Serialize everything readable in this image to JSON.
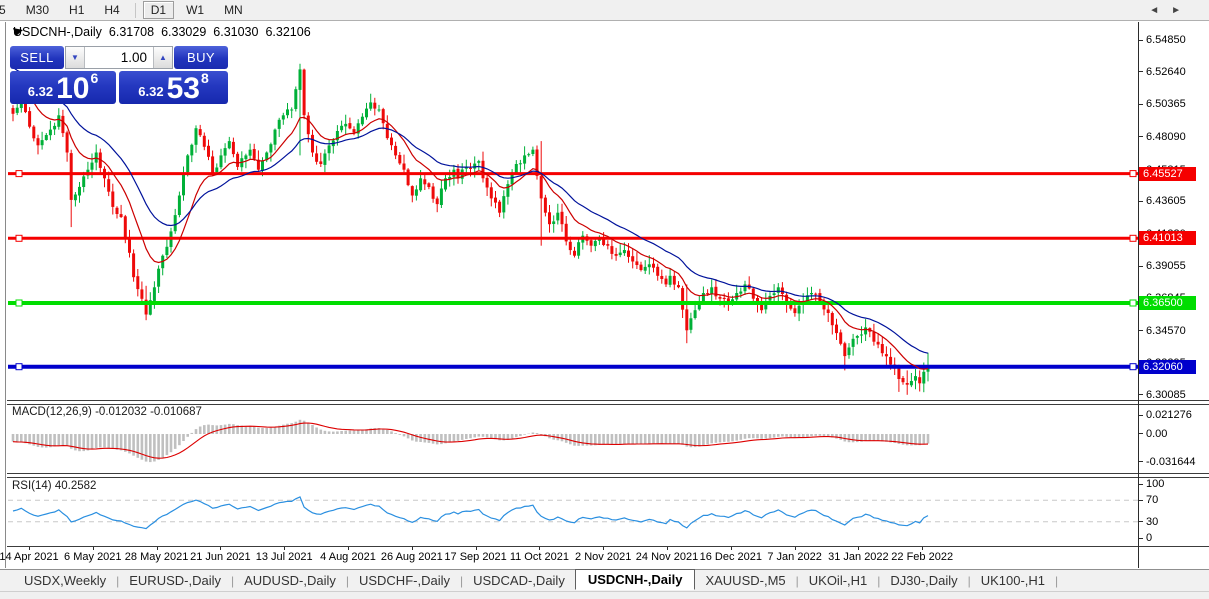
{
  "toolbar": {
    "timeframes": [
      {
        "label": "5",
        "active": false,
        "clipped": true
      },
      {
        "label": "M30",
        "active": false
      },
      {
        "label": "H1",
        "active": false
      },
      {
        "label": "H4",
        "active": false
      },
      {
        "label": "D1",
        "active": true
      },
      {
        "label": "W1",
        "active": false
      },
      {
        "label": "MN",
        "active": false
      }
    ]
  },
  "chart": {
    "title": "USDCNH-,Daily",
    "ohlc": {
      "open": "6.31708",
      "high": "6.33029",
      "low": "6.31030",
      "close": "6.32106"
    }
  },
  "trade_panel": {
    "sell_label": "SELL",
    "buy_label": "BUY",
    "volume": "1.00",
    "sell": {
      "prefix": "6.32",
      "main": "10",
      "sup": "6"
    },
    "buy": {
      "prefix": "6.32",
      "main": "53",
      "sup": "8"
    }
  },
  "indicators": {
    "macd": {
      "name": "MACD(12,26,9)",
      "main": "-0.012032",
      "signal": "-0.010687"
    },
    "rsi": {
      "name": "RSI(14)",
      "value": "40.2582"
    }
  },
  "axes": {
    "price_ticks": [
      "6.54850",
      "6.52640",
      "6.50365",
      "6.48090",
      "6.45815",
      "6.43605",
      "6.41330",
      "6.39055",
      "6.36845",
      "6.34570",
      "6.32295",
      "6.30085"
    ],
    "macd_ticks": [
      {
        "v": 0.021276,
        "label": "0.021276"
      },
      {
        "v": 0,
        "label": "0.00"
      },
      {
        "v": -0.031644,
        "label": "-0.031644"
      }
    ],
    "rsi_ticks": [
      {
        "v": 100,
        "label": "100"
      },
      {
        "v": 70,
        "label": "70"
      },
      {
        "v": 30,
        "label": "30"
      },
      {
        "v": 0,
        "label": "0"
      }
    ],
    "dates": [
      "14 Apr 2021",
      "6 May 2021",
      "28 May 2021",
      "21 Jun 2021",
      "13 Jul 2021",
      "4 Aug 2021",
      "26 Aug 2021",
      "17 Sep 2021",
      "11 Oct 2021",
      "2 Nov 2021",
      "24 Nov 2021",
      "16 Dec 2021",
      "7 Jan 2022",
      "31 Jan 2022",
      "22 Feb 2022"
    ]
  },
  "tabs": {
    "items": [
      {
        "label": "USDX,Weekly",
        "active": false
      },
      {
        "label": "EURUSD-,Daily",
        "active": false
      },
      {
        "label": "AUDUSD-,Daily",
        "active": false
      },
      {
        "label": "USDCHF-,Daily",
        "active": false
      },
      {
        "label": "USDCAD-,Daily",
        "active": false
      },
      {
        "label": "USDCNH-,Daily",
        "active": true
      },
      {
        "label": "XAUUSD-,M5",
        "active": false
      },
      {
        "label": "UKOil-,H1",
        "active": false
      },
      {
        "label": "DJ30-,Daily",
        "active": false
      },
      {
        "label": "UK100-,H1",
        "active": false
      }
    ],
    "scroll_left_icon": "◄",
    "scroll_right_icon": "►"
  },
  "colors": {
    "candle_up": "#00b038",
    "candle_down": "#ee0a0a",
    "ma_fast": "#cc0000",
    "ma_slow": "#00129b",
    "macd_hist": "#c0c0c0",
    "macd_signal": "#dd0000",
    "rsi_line": "#2a8fe0",
    "level_silver": "#c8c8c8"
  },
  "chart_data": {
    "type": "candlestick",
    "symbol": "USDCNH-",
    "timeframe": "Daily",
    "bar_count": 221,
    "price_axis_range": [
      6.5485,
      6.30085
    ],
    "last_bar": {
      "open": 6.31708,
      "high": 6.33029,
      "low": 6.3103,
      "close": 6.32106
    },
    "bid": "6.32106",
    "ask": "6.32538",
    "hlines": [
      {
        "price": 6.45527,
        "label": "6.45527",
        "color": "#f50000",
        "width": 3
      },
      {
        "price": 6.41013,
        "label": "6.41013",
        "color": "#f50000",
        "width": 3
      },
      {
        "price": 6.365,
        "label": "6.36500",
        "color": "#00dd00",
        "width": 4
      },
      {
        "price": 6.3206,
        "label": "6.32060",
        "color": "#0000cc",
        "width": 4
      }
    ],
    "moving_averages": [
      {
        "period": 12,
        "color": "#cc0000"
      },
      {
        "period": 26,
        "color": "#00129b"
      }
    ],
    "macd": {
      "fast": 12,
      "slow": 26,
      "signal": 9,
      "current_main": -0.012032,
      "current_signal": -0.010687,
      "scale_max": 0.021276,
      "scale_min": -0.031644
    },
    "rsi": {
      "period": 14,
      "current": 40.2582,
      "levels": [
        70,
        30
      ]
    },
    "close_anchors": [
      [
        0,
        6.497
      ],
      [
        2,
        6.508
      ],
      [
        4,
        6.488
      ],
      [
        6,
        6.475
      ],
      [
        9,
        6.486
      ],
      [
        11,
        6.496
      ],
      [
        13,
        6.47
      ],
      [
        14,
        6.437
      ],
      [
        16,
        6.446
      ],
      [
        18,
        6.458
      ],
      [
        20,
        6.47
      ],
      [
        22,
        6.452
      ],
      [
        24,
        6.432
      ],
      [
        26,
        6.425
      ],
      [
        28,
        6.4
      ],
      [
        29,
        6.383
      ],
      [
        31,
        6.368
      ],
      [
        32,
        6.357
      ],
      [
        34,
        6.376
      ],
      [
        36,
        6.398
      ],
      [
        38,
        6.415
      ],
      [
        40,
        6.44
      ],
      [
        42,
        6.468
      ],
      [
        44,
        6.487
      ],
      [
        46,
        6.474
      ],
      [
        48,
        6.456
      ],
      [
        50,
        6.468
      ],
      [
        52,
        6.478
      ],
      [
        54,
        6.46
      ],
      [
        56,
        6.468
      ],
      [
        57,
        6.472
      ],
      [
        59,
        6.458
      ],
      [
        61,
        6.47
      ],
      [
        63,
        6.486
      ],
      [
        65,
        6.496
      ],
      [
        67,
        6.5
      ],
      [
        69,
        6.528
      ],
      [
        70,
        6.496
      ],
      [
        72,
        6.47
      ],
      [
        74,
        6.462
      ],
      [
        76,
        6.475
      ],
      [
        78,
        6.485
      ],
      [
        80,
        6.49
      ],
      [
        82,
        6.484
      ],
      [
        84,
        6.495
      ],
      [
        86,
        6.505
      ],
      [
        88,
        6.5
      ],
      [
        90,
        6.48
      ],
      [
        92,
        6.468
      ],
      [
        94,
        6.458
      ],
      [
        96,
        6.44
      ],
      [
        98,
        6.452
      ],
      [
        100,
        6.446
      ],
      [
        102,
        6.434
      ],
      [
        104,
        6.452
      ],
      [
        106,
        6.458
      ],
      [
        107,
        6.452
      ],
      [
        109,
        6.46
      ],
      [
        112,
        6.464
      ],
      [
        113,
        6.452
      ],
      [
        115,
        6.438
      ],
      [
        117,
        6.428
      ],
      [
        119,
        6.448
      ],
      [
        121,
        6.462
      ],
      [
        123,
        6.468
      ],
      [
        125,
        6.472
      ],
      [
        127,
        6.438
      ],
      [
        129,
        6.42
      ],
      [
        131,
        6.428
      ],
      [
        133,
        6.408
      ],
      [
        135,
        6.398
      ],
      [
        137,
        6.412
      ],
      [
        139,
        6.405
      ],
      [
        141,
        6.41
      ],
      [
        143,
        6.405
      ],
      [
        145,
        6.398
      ],
      [
        147,
        6.402
      ],
      [
        149,
        6.394
      ],
      [
        151,
        6.388
      ],
      [
        153,
        6.392
      ],
      [
        155,
        6.384
      ],
      [
        157,
        6.378
      ],
      [
        158,
        6.384
      ],
      [
        160,
        6.376
      ],
      [
        162,
        6.346
      ],
      [
        164,
        6.36
      ],
      [
        166,
        6.372
      ],
      [
        168,
        6.376
      ],
      [
        170,
        6.368
      ],
      [
        172,
        6.364
      ],
      [
        174,
        6.372
      ],
      [
        176,
        6.378
      ],
      [
        178,
        6.368
      ],
      [
        180,
        6.36
      ],
      [
        182,
        6.37
      ],
      [
        184,
        6.376
      ],
      [
        186,
        6.364
      ],
      [
        188,
        6.358
      ],
      [
        190,
        6.366
      ],
      [
        192,
        6.372
      ],
      [
        194,
        6.366
      ],
      [
        196,
        6.358
      ],
      [
        198,
        6.344
      ],
      [
        200,
        6.328
      ],
      [
        201,
        6.334
      ],
      [
        203,
        6.342
      ],
      [
        205,
        6.348
      ],
      [
        207,
        6.338
      ],
      [
        209,
        6.33
      ],
      [
        211,
        6.322
      ],
      [
        213,
        6.312
      ],
      [
        215,
        6.308
      ],
      [
        217,
        6.314
      ],
      [
        218,
        6.309
      ],
      [
        219,
        6.317
      ],
      [
        220,
        6.32106
      ]
    ],
    "wick_overrides": {
      "14": [
        6.472,
        6.418
      ],
      "32": [
        6.377,
        6.353
      ],
      "69": [
        6.532,
        6.468
      ],
      "127": [
        6.478,
        6.405
      ],
      "162": [
        6.378,
        6.337
      ],
      "200": [
        6.338,
        6.318
      ],
      "215": [
        6.318,
        6.301
      ],
      "213": [
        6.322,
        6.303
      ]
    }
  }
}
